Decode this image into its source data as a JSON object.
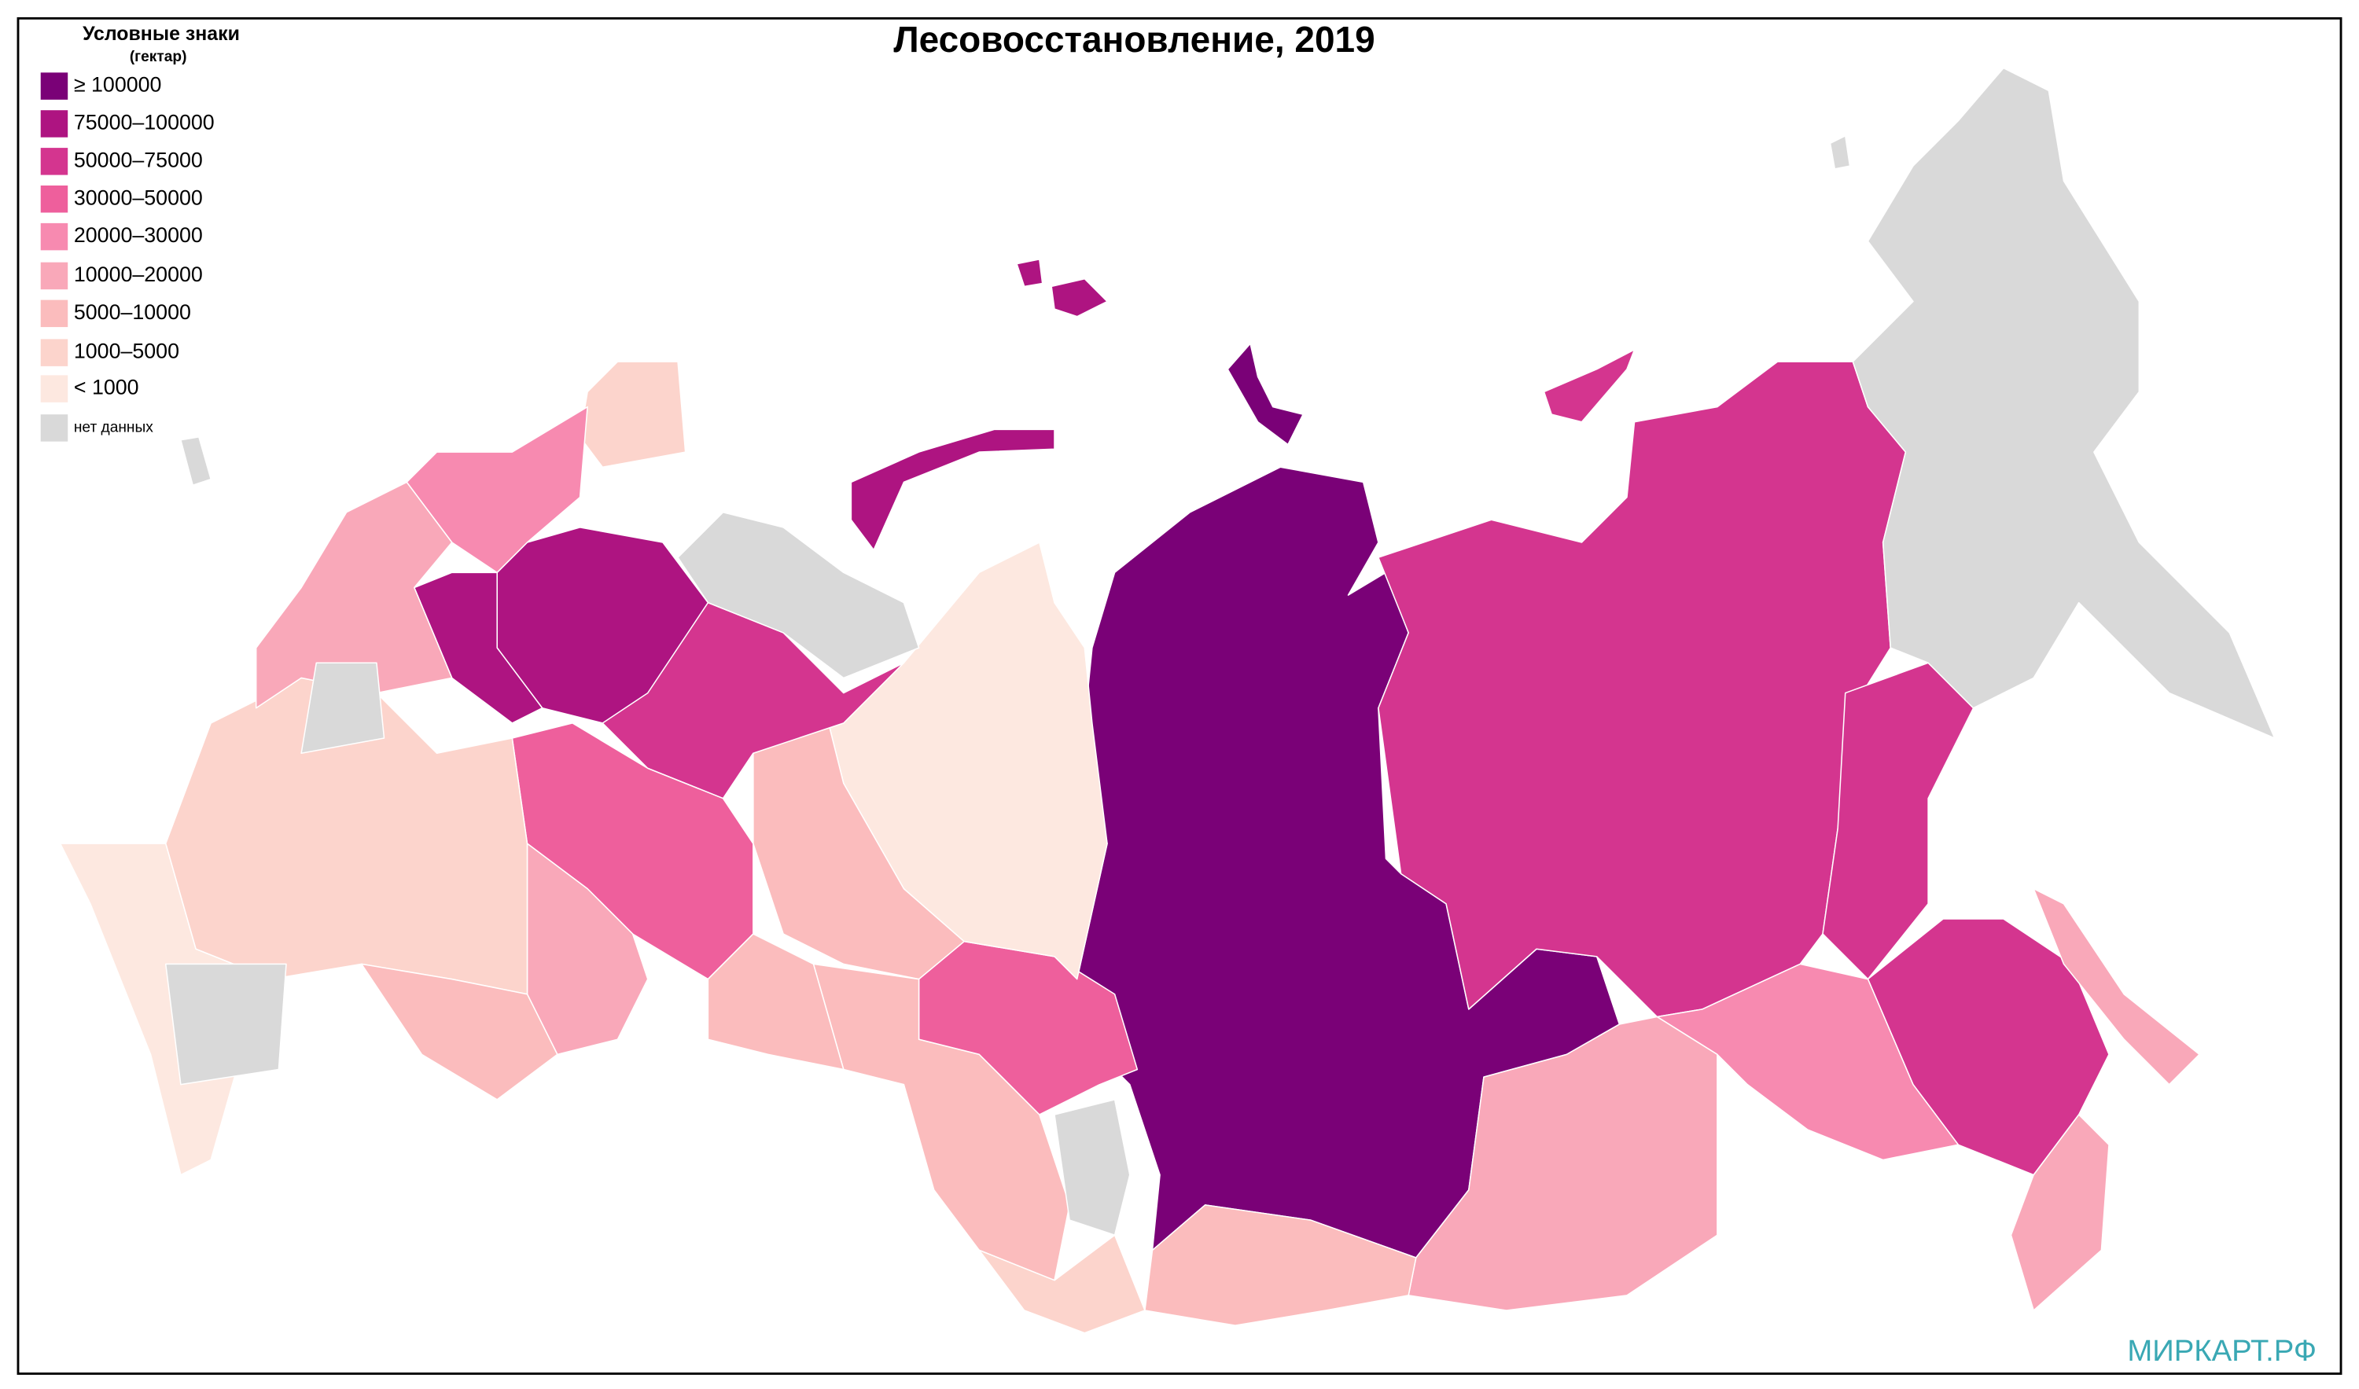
{
  "title": "Лесовосстановление, 2019",
  "legend": {
    "title": "Условные знаки",
    "subtitle": "(гектар)",
    "items": [
      {
        "label": "≥ 100000",
        "color": "#7a0177"
      },
      {
        "label": "75000–100000",
        "color": "#ae1481"
      },
      {
        "label": "50000–75000",
        "color": "#d4358f"
      },
      {
        "label": "30000–50000",
        "color": "#ee5f9c"
      },
      {
        "label": "20000–30000",
        "color": "#f78ab0"
      },
      {
        "label": "10000–20000",
        "color": "#f9a8b9"
      },
      {
        "label": "5000–10000",
        "color": "#fbbcbd"
      },
      {
        "label": "1000–5000",
        "color": "#fcd4cc"
      },
      {
        "label": "< 1000",
        "color": "#fde8e0"
      },
      {
        "label": "нет данных",
        "color": "#d9d9d9"
      }
    ]
  },
  "watermark": "МИРКАРТ.РФ"
}
